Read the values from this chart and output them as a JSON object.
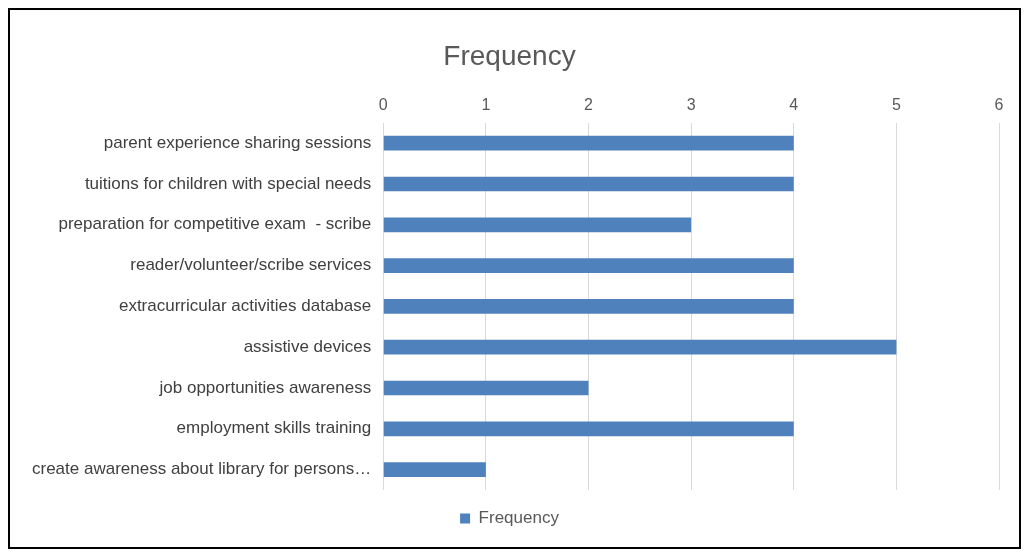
{
  "chart_data": {
    "type": "bar",
    "title": "Frequency",
    "orientation": "horizontal",
    "categories": [
      "parent experience sharing sessions",
      "tuitions for children with special needs",
      "preparation for competitive exam  - scribe",
      "reader/volunteer/scribe services",
      "extracurricular activities database",
      "assistive devices",
      "job opportunities awareness",
      "employment skills training",
      "create awareness about library for persons…"
    ],
    "series": [
      {
        "name": "Frequency",
        "color": "#4f81bd",
        "values": [
          4,
          4,
          3,
          4,
          4,
          5,
          2,
          4,
          1
        ]
      }
    ],
    "xlim": [
      0,
      6
    ],
    "xticks": [
      0,
      1,
      2,
      3,
      4,
      5,
      6
    ],
    "grid": "x",
    "legend": "bottom"
  }
}
